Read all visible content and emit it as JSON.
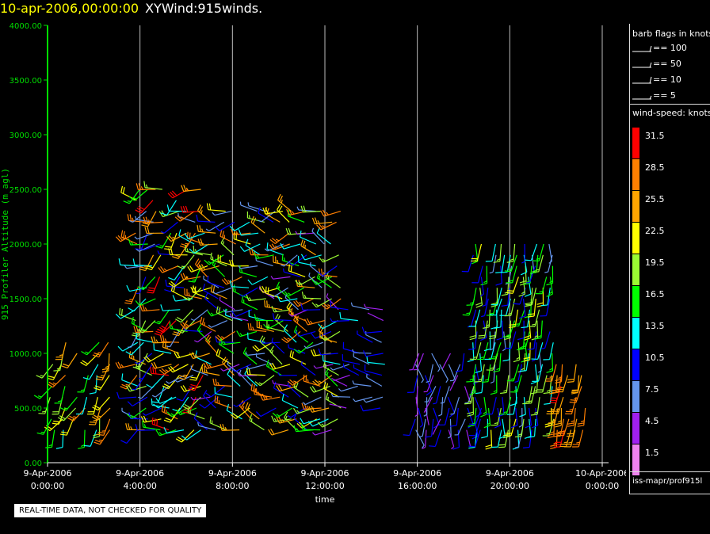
{
  "header": {
    "date": "10-apr-2006,00:00:00",
    "name": "XYWind:915winds."
  },
  "chart_data": {
    "type": "wind-barb-timeseries",
    "xlabel": "time",
    "ylabel": "915 Profiler Altitude (m agl)",
    "xlim_hours": [
      0,
      24
    ],
    "ylim": [
      0,
      4000
    ],
    "grid": "vertical",
    "x_ticks": [
      {
        "hour": 0,
        "date": "9-Apr-2006",
        "time": "0:00:00"
      },
      {
        "hour": 4,
        "date": "9-Apr-2006",
        "time": "4:00:00"
      },
      {
        "hour": 8,
        "date": "9-Apr-2006",
        "time": "8:00:00"
      },
      {
        "hour": 12,
        "date": "9-Apr-2006",
        "time": "12:00:00"
      },
      {
        "hour": 16,
        "date": "9-Apr-2006",
        "time": "16:00:00"
      },
      {
        "hour": 20,
        "date": "9-Apr-2006",
        "time": "20:00:00"
      },
      {
        "hour": 24,
        "date": "10-Apr-2006",
        "time": "0:00:00"
      }
    ],
    "y_ticks": [
      "0.00",
      "500.00",
      "1000.00",
      "1500.00",
      "2000.00",
      "2500.00",
      "3000.00",
      "3500.00",
      "4000.00"
    ],
    "y_values": [
      0,
      500,
      1000,
      1500,
      2000,
      2500,
      3000,
      3500,
      4000
    ],
    "profile_groups": [
      {
        "start_h": -0.3,
        "end_h": 3.0,
        "step_h": 0.5,
        "heights": [
          300,
          1100
        ],
        "speed": [
          13,
          30
        ],
        "dir": [
          180,
          230
        ]
      },
      {
        "start_h": 3.9,
        "end_h": 7.0,
        "step_h": 0.35,
        "heights": [
          300,
          2500
        ],
        "speed": [
          7,
          32
        ],
        "dir": [
          200,
          300
        ]
      },
      {
        "start_h": 7.0,
        "end_h": 12.6,
        "step_h": 0.35,
        "heights": [
          300,
          2300
        ],
        "speed": [
          5,
          30
        ],
        "dir": [
          230,
          320
        ]
      },
      {
        "start_h": 13.0,
        "end_h": 14.5,
        "step_h": 0.5,
        "heights": [
          500,
          1400
        ],
        "speed": [
          4,
          13
        ],
        "dir": [
          250,
          300
        ]
      },
      {
        "start_h": 16.0,
        "end_h": 18.5,
        "step_h": 0.35,
        "heights": [
          300,
          1000
        ],
        "speed": [
          3,
          12
        ],
        "dir": [
          150,
          210
        ]
      },
      {
        "start_h": 18.5,
        "end_h": 22.0,
        "step_h": 0.3,
        "heights": [
          300,
          2000
        ],
        "speed": [
          8,
          22
        ],
        "dir": [
          170,
          200
        ]
      },
      {
        "start_h": 22.0,
        "end_h": 23.3,
        "step_h": 0.3,
        "heights": [
          300,
          900
        ],
        "speed": [
          24,
          31
        ],
        "dir": [
          180,
          200
        ]
      }
    ],
    "legend": {
      "flags_title": "barb flags in knots",
      "flags": [
        {
          "label": "== 100",
          "value": 100
        },
        {
          "label": "== 50",
          "value": 50
        },
        {
          "label": "== 10",
          "value": 10
        },
        {
          "label": "== 5",
          "value": 5
        }
      ],
      "speed_title": "wind-speed: knots",
      "speeds": [
        {
          "label": "31.5",
          "color": "#ff0000"
        },
        {
          "label": "28.5",
          "color": "#ff7f00"
        },
        {
          "label": "25.5",
          "color": "#ffa500"
        },
        {
          "label": "22.5",
          "color": "#ffff00"
        },
        {
          "label": "19.5",
          "color": "#9afa32"
        },
        {
          "label": "16.5",
          "color": "#00ff00"
        },
        {
          "label": "13.5",
          "color": "#00ffff"
        },
        {
          "label": "10.5",
          "color": "#0000ff"
        },
        {
          "label": "7.5",
          "color": "#6495ed"
        },
        {
          "label": "4.5",
          "color": "#a020f0"
        },
        {
          "label": "1.5",
          "color": "#ee82ee"
        }
      ]
    }
  },
  "footer": {
    "source": "iss-mapr/prof915l",
    "disclaimer": "REAL-TIME DATA, NOT CHECKED FOR QUALITY"
  }
}
